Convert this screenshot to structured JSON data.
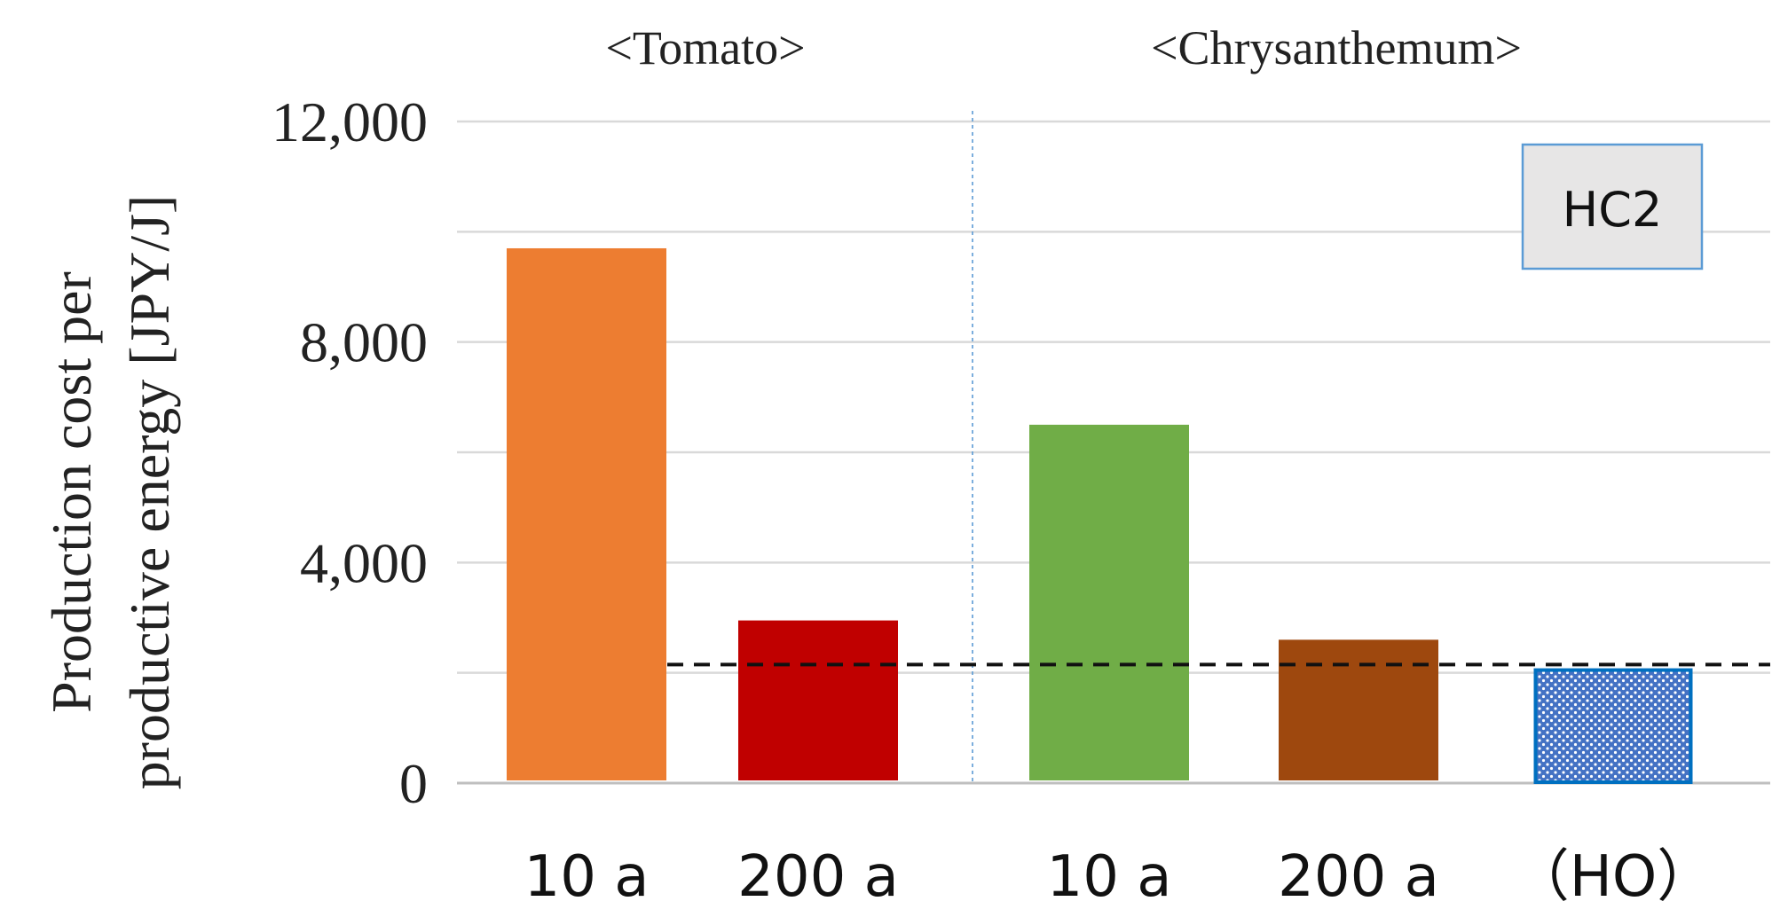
{
  "chart_data": {
    "type": "bar",
    "ylabel_line1": "Production cost per",
    "ylabel_line2": "productive energy [JPY/J]",
    "ylim": [
      0,
      12000
    ],
    "yticks": [
      0,
      4000,
      8000,
      12000
    ],
    "ytick_labels": [
      "0",
      "4,000",
      "8,000",
      "12,000"
    ],
    "grid": true,
    "groups": [
      {
        "label": "<Tomato>"
      },
      {
        "label": "<Chrysanthemum>"
      }
    ],
    "categories": [
      "10 a",
      "200 a",
      "10 a",
      "200 a",
      "（HO）"
    ],
    "values": [
      9700,
      2950,
      6500,
      2600,
      2050
    ],
    "bar_colors": [
      "#ED7D31",
      "#C00000",
      "#70AD47",
      "#9E480E",
      "#4472C4"
    ],
    "reference_line": {
      "value": 2150,
      "style": "dashed"
    },
    "annotation": "HC2"
  }
}
